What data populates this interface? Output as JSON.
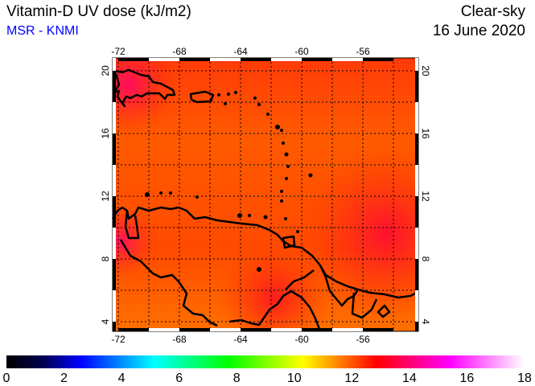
{
  "header": {
    "title": "Vitamin-D UV dose (kJ/m2)",
    "source": "MSR - KNMI",
    "product": "Clear-sky",
    "date": "16 June 2020"
  },
  "map": {
    "lon_range": [
      -72,
      -54
    ],
    "lat_range": [
      3.5,
      20.5
    ],
    "lon_labels": [
      -72,
      -68,
      -64,
      -60,
      -56
    ],
    "lat_labels": [
      20,
      16,
      12,
      8,
      4
    ],
    "grid_step_deg": 2
  },
  "colorbar": {
    "min": 0,
    "max": 18,
    "labels": [
      "0",
      "2",
      "4",
      "6",
      "8",
      "10",
      "12",
      "14",
      "16",
      "18"
    ],
    "stops": [
      "#000000",
      "#000050",
      "#0000ff",
      "#0080ff",
      "#00ffff",
      "#00ff80",
      "#00ff00",
      "#80ff00",
      "#ffff00",
      "#ff8000",
      "#ff0000",
      "#ff0080",
      "#ff00ff",
      "#ff80ff",
      "#ffffff"
    ]
  }
}
